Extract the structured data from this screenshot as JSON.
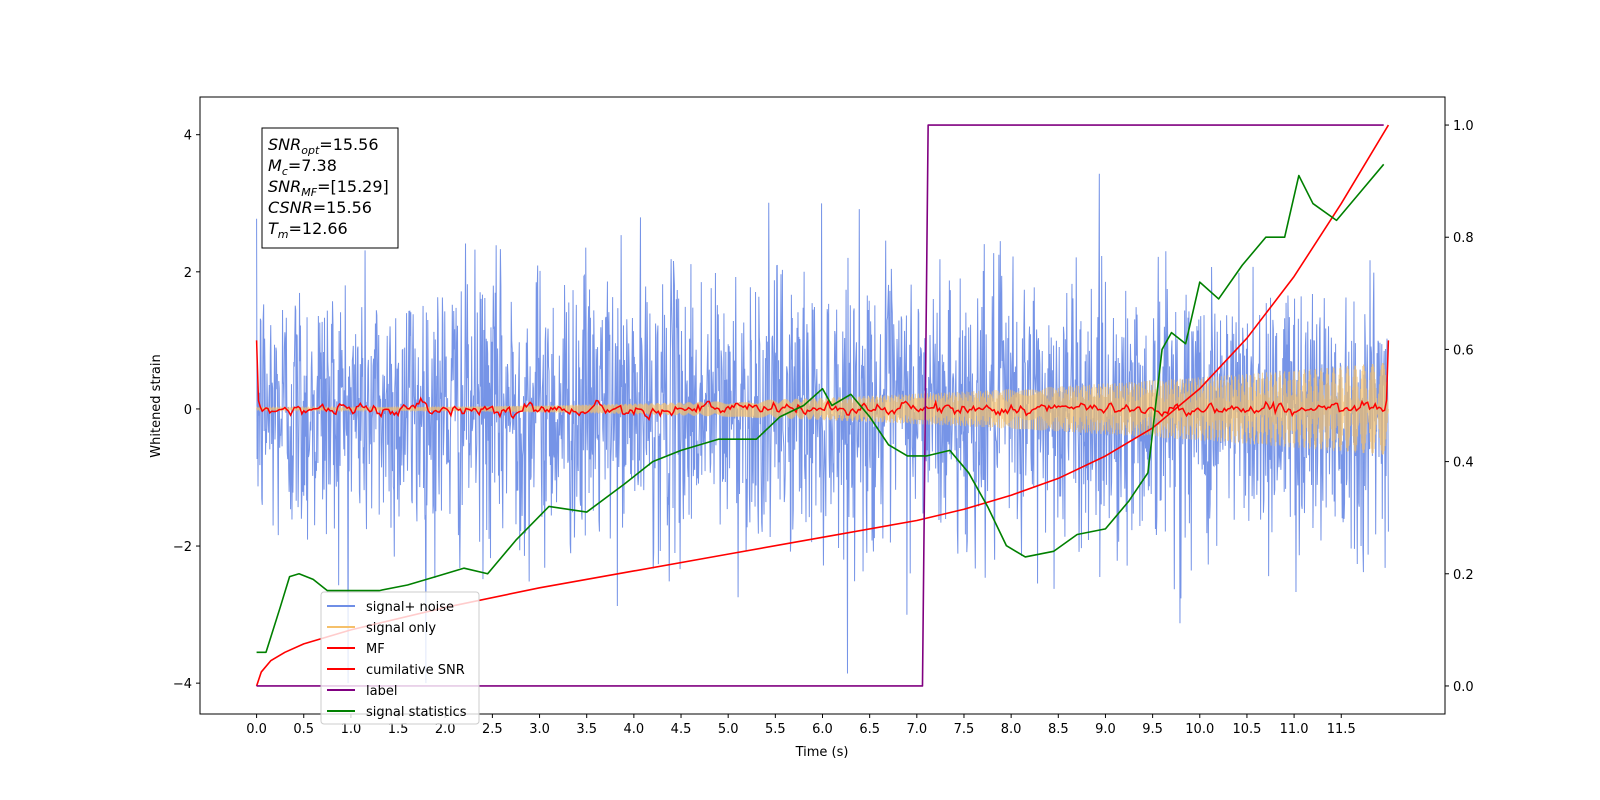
{
  "chart_data": {
    "type": "line",
    "xlabel": "Time (s)",
    "ylabel": "Whitened strain",
    "xlim": [
      -0.6,
      12.6
    ],
    "ylim": [
      -4.45,
      4.55
    ],
    "y2lim": [
      -0.05,
      1.05
    ],
    "grid": false,
    "legend_position": "bottom-left",
    "x_ticks": [
      0.0,
      0.5,
      1.0,
      1.5,
      2.0,
      2.5,
      3.0,
      3.5,
      4.0,
      4.5,
      5.0,
      5.5,
      6.0,
      6.5,
      7.0,
      7.5,
      8.0,
      8.5,
      9.0,
      9.5,
      10.0,
      10.5,
      11.0,
      11.5
    ],
    "x_tick_labels": [
      "0.0",
      "0.5",
      "1.0",
      "1.5",
      "2.0",
      "2.5",
      "3.0",
      "3.5",
      "4.0",
      "4.5",
      "5.0",
      "5.5",
      "6.0",
      "6.5",
      "7.0",
      "7.5",
      "8.0",
      "8.5",
      "9.0",
      "9.5",
      "10.0",
      "10.5",
      "11.0",
      "11.5"
    ],
    "y_ticks": [
      -4,
      -2,
      0,
      2,
      4
    ],
    "y_tick_labels": [
      "−4",
      "−2",
      "0",
      "2",
      "4"
    ],
    "y2_ticks": [
      0.0,
      0.2,
      0.4,
      0.6,
      0.8,
      1.0
    ],
    "y2_tick_labels": [
      "0.0",
      "0.2",
      "0.4",
      "0.6",
      "0.8",
      "1.0"
    ],
    "annotation": {
      "lines": [
        {
          "main": "SNR",
          "sub": "opt",
          "rest": "=15.56"
        },
        {
          "main": "M",
          "sub": "c",
          "rest": "=7.38"
        },
        {
          "main": "SNR",
          "sub": "MF",
          "rest": "=[15.29]"
        },
        {
          "main": "CSNR",
          "sub": "",
          "rest": "=15.56"
        },
        {
          "main": "T",
          "sub": "m",
          "rest": "=12.66"
        }
      ]
    },
    "series": [
      {
        "name": "signal+ noise",
        "color": "#6f8ee6",
        "axis": "left",
        "description_kind": "noise",
        "t_start": 0.0,
        "t_end": 12.0,
        "typical_range": [
          -2.5,
          3.0
        ],
        "extremes": [
          -4.0,
          4.1
        ]
      },
      {
        "name": "signal only",
        "color": "#f5c06a",
        "axis": "left",
        "description_kind": "chirp",
        "t_start": 0.0,
        "t_end": 12.0,
        "amplitude_start": 0.02,
        "amplitude_end": 0.68
      },
      {
        "name": "MF",
        "color": "#ff0000",
        "axis": "left",
        "t_start": 0.0,
        "t_end": 12.0,
        "start_value": 1.0,
        "end_value": 1.0,
        "baseline": 0.0,
        "fluctuation": 0.1
      },
      {
        "name": "cumilative SNR",
        "color": "#ff0000",
        "axis": "right",
        "x": [
          0.0,
          0.05,
          0.15,
          0.3,
          0.5,
          1.0,
          2.0,
          3.0,
          4.0,
          5.0,
          6.0,
          7.0,
          7.5,
          8.0,
          8.5,
          9.0,
          9.5,
          10.0,
          10.5,
          11.0,
          11.5,
          12.0
        ],
        "values": [
          0.0,
          0.025,
          0.045,
          0.06,
          0.075,
          0.1,
          0.14,
          0.175,
          0.205,
          0.235,
          0.265,
          0.295,
          0.315,
          0.34,
          0.37,
          0.41,
          0.46,
          0.53,
          0.62,
          0.73,
          0.86,
          1.0
        ]
      },
      {
        "name": "label",
        "color": "#800080",
        "axis": "right",
        "x": [
          0.0,
          7.06,
          7.12,
          11.95
        ],
        "values": [
          0.0,
          0.0,
          1.0,
          1.0
        ]
      },
      {
        "name": "signal statistics",
        "color": "#008000",
        "axis": "right",
        "x": [
          0.0,
          0.1,
          0.25,
          0.35,
          0.45,
          0.6,
          0.75,
          1.0,
          1.3,
          1.6,
          1.9,
          2.2,
          2.45,
          2.75,
          3.1,
          3.5,
          3.9,
          4.2,
          4.5,
          4.9,
          5.3,
          5.55,
          5.8,
          6.0,
          6.1,
          6.3,
          6.5,
          6.7,
          6.9,
          7.1,
          7.35,
          7.55,
          7.75,
          7.95,
          8.15,
          8.45,
          8.7,
          9.0,
          9.25,
          9.45,
          9.6,
          9.7,
          9.85,
          10.0,
          10.2,
          10.45,
          10.7,
          10.9,
          11.05,
          11.2,
          11.45,
          11.7,
          11.95
        ],
        "values": [
          0.06,
          0.06,
          0.14,
          0.195,
          0.2,
          0.19,
          0.17,
          0.17,
          0.17,
          0.18,
          0.195,
          0.21,
          0.2,
          0.26,
          0.32,
          0.31,
          0.36,
          0.4,
          0.42,
          0.44,
          0.44,
          0.48,
          0.5,
          0.53,
          0.5,
          0.52,
          0.48,
          0.43,
          0.41,
          0.41,
          0.42,
          0.38,
          0.32,
          0.25,
          0.23,
          0.24,
          0.27,
          0.28,
          0.33,
          0.38,
          0.6,
          0.63,
          0.61,
          0.72,
          0.69,
          0.75,
          0.8,
          0.8,
          0.91,
          0.86,
          0.83,
          0.88,
          0.93
        ]
      }
    ],
    "legend": [
      {
        "label": "signal+ noise",
        "color": "#6f8ee6"
      },
      {
        "label": "signal only",
        "color": "#f5c06a"
      },
      {
        "label": "MF",
        "color": "#ff0000"
      },
      {
        "label": "cumilative SNR",
        "color": "#ff0000"
      },
      {
        "label": "label",
        "color": "#800080"
      },
      {
        "label": "signal statistics",
        "color": "#008000"
      }
    ]
  }
}
